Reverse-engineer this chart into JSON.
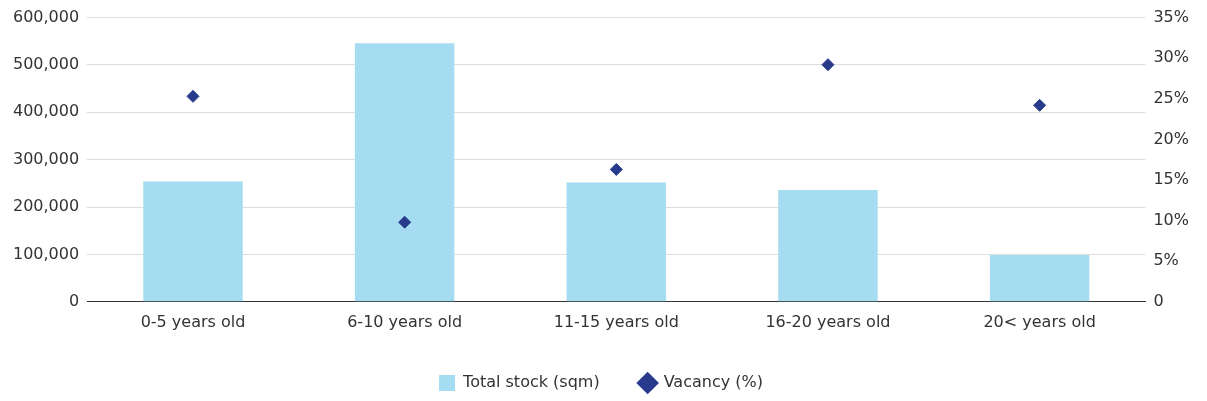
{
  "chart_data": {
    "type": "bar",
    "categories": [
      "0-5 years old",
      "6-10 years old",
      "11-15 years old",
      "16-20 years old",
      "20< years old"
    ],
    "series": [
      {
        "name": "Total stock (sqm)",
        "color": "#a6dcf2",
        "values": [
          254000,
          546000,
          252000,
          236000,
          99000
        ]
      },
      {
        "name": "Vacancy (%)",
        "type": "scatter",
        "axis": "y2",
        "color": "#283a8c",
        "marker": "diamond",
        "values": [
          25.3,
          9.8,
          16.3,
          29.2,
          24.2
        ]
      }
    ],
    "ylim": [
      0,
      600000
    ],
    "yticks": [
      0,
      {
        "value": 100000,
        "label": "100,000"
      },
      {
        "value": 200000,
        "label": "200,000"
      },
      {
        "value": 300000,
        "label": "300,000"
      },
      {
        "value": 400000,
        "label": "400,000"
      },
      {
        "value": 500000,
        "label": "500,000"
      },
      {
        "value": 600000,
        "label": "600,000"
      }
    ],
    "y2lim": [
      0,
      35
    ],
    "y2ticks": [
      0,
      {
        "value": 5,
        "label": "5%"
      },
      {
        "value": 10,
        "label": "10%"
      },
      {
        "value": 15,
        "label": "15%"
      },
      {
        "value": 20,
        "label": "20%"
      },
      {
        "value": 25,
        "label": "25%"
      },
      {
        "value": 30,
        "label": "30%"
      },
      {
        "value": 35,
        "label": "35%"
      }
    ],
    "grid": "y",
    "legend": "bottom"
  }
}
